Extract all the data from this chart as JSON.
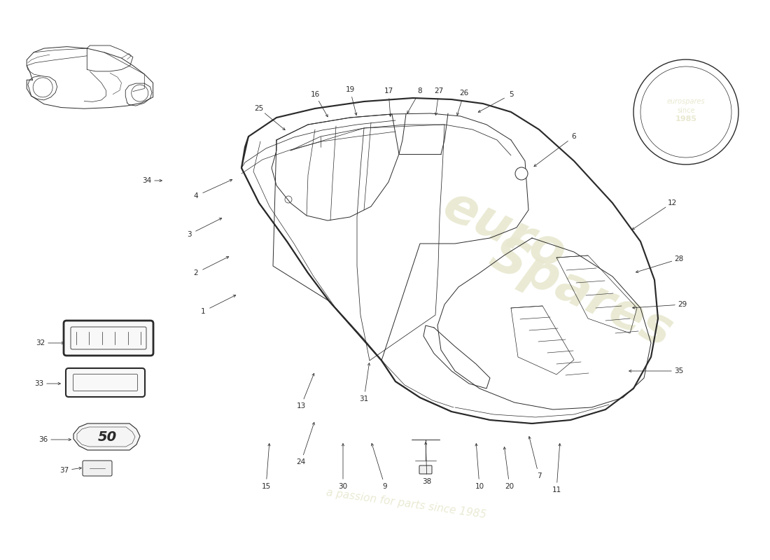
{
  "bg_color": "#ffffff",
  "line_color": "#2a2a2a",
  "lw_main": 1.2,
  "lw_detail": 0.7,
  "lw_thin": 0.5,
  "watermark_color": "#e8e8d0",
  "label_fontsize": 7.5,
  "parts": [
    [
      1,
      290,
      445,
      340,
      420
    ],
    [
      2,
      280,
      390,
      330,
      365
    ],
    [
      3,
      270,
      335,
      320,
      310
    ],
    [
      4,
      280,
      280,
      335,
      255
    ],
    [
      5,
      730,
      135,
      680,
      162
    ],
    [
      6,
      820,
      195,
      760,
      240
    ],
    [
      7,
      770,
      680,
      755,
      620
    ],
    [
      8,
      600,
      130,
      580,
      165
    ],
    [
      9,
      550,
      695,
      530,
      630
    ],
    [
      10,
      685,
      695,
      680,
      630
    ],
    [
      11,
      795,
      700,
      800,
      630
    ],
    [
      12,
      960,
      290,
      900,
      330
    ],
    [
      13,
      430,
      580,
      450,
      530
    ],
    [
      15,
      380,
      695,
      385,
      630
    ],
    [
      16,
      450,
      135,
      470,
      170
    ],
    [
      17,
      555,
      130,
      558,
      170
    ],
    [
      19,
      500,
      128,
      510,
      168
    ],
    [
      20,
      728,
      695,
      720,
      635
    ],
    [
      24,
      430,
      660,
      450,
      600
    ],
    [
      25,
      370,
      155,
      410,
      188
    ],
    [
      26,
      663,
      133,
      652,
      168
    ],
    [
      27,
      627,
      130,
      622,
      168
    ],
    [
      28,
      970,
      370,
      905,
      390
    ],
    [
      29,
      975,
      435,
      900,
      440
    ],
    [
      30,
      490,
      695,
      490,
      630
    ],
    [
      31,
      520,
      570,
      528,
      515
    ],
    [
      32,
      58,
      490,
      95,
      490
    ],
    [
      33,
      56,
      548,
      90,
      548
    ],
    [
      34,
      210,
      258,
      235,
      258
    ],
    [
      35,
      970,
      530,
      895,
      530
    ],
    [
      36,
      62,
      628,
      105,
      628
    ],
    [
      37,
      92,
      672,
      120,
      668
    ],
    [
      38,
      610,
      688,
      608,
      628
    ]
  ]
}
